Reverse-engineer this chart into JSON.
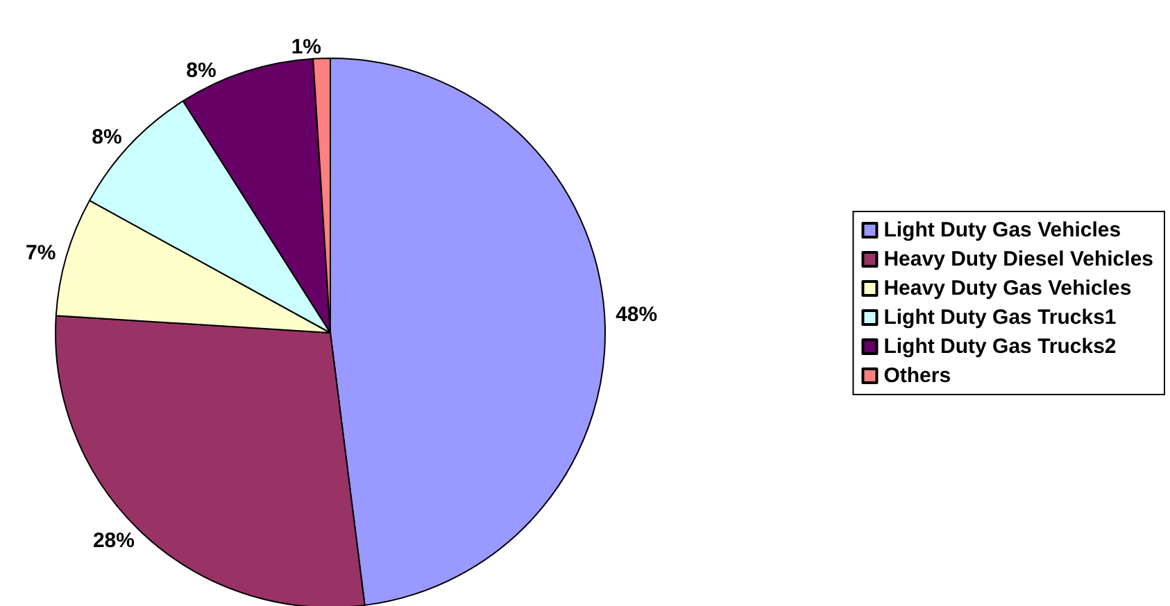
{
  "chart_data": {
    "type": "pie",
    "categories": [
      "Light Duty Gas Vehicles",
      "Heavy Duty Diesel Vehicles",
      "Heavy Duty Gas Vehicles",
      "Light Duty Gas Trucks1",
      "Light Duty Gas Trucks2",
      "Others"
    ],
    "values": [
      48,
      28,
      7,
      8,
      8,
      1
    ],
    "colors": [
      "#9999ff",
      "#993366",
      "#ffffcc",
      "#ccffff",
      "#660066",
      "#ff8080"
    ],
    "value_labels": [
      "48%",
      "28%",
      "7%",
      "8%",
      "8%",
      "1%"
    ],
    "legend": "right"
  }
}
